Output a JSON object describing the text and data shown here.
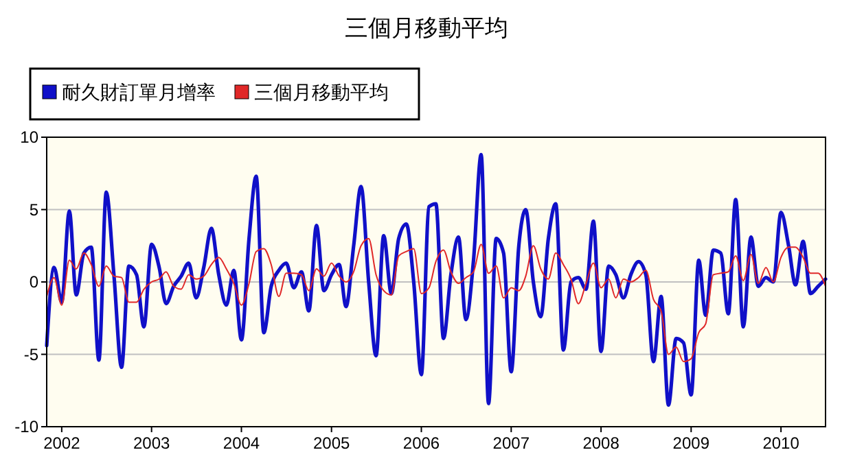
{
  "chart_data": {
    "type": "line",
    "title": "三個月移動平均",
    "x": [
      "2001-11",
      "2001-12",
      "2002-01",
      "2002-02",
      "2002-03",
      "2002-04",
      "2002-05",
      "2002-06",
      "2002-07",
      "2002-08",
      "2002-09",
      "2002-10",
      "2002-11",
      "2002-12",
      "2003-01",
      "2003-02",
      "2003-03",
      "2003-04",
      "2003-05",
      "2003-06",
      "2003-07",
      "2003-08",
      "2003-09",
      "2003-10",
      "2003-11",
      "2003-12",
      "2004-01",
      "2004-02",
      "2004-03",
      "2004-04",
      "2004-05",
      "2004-06",
      "2004-07",
      "2004-08",
      "2004-09",
      "2004-10",
      "2004-11",
      "2004-12",
      "2005-01",
      "2005-02",
      "2005-03",
      "2005-04",
      "2005-05",
      "2005-06",
      "2005-07",
      "2005-08",
      "2005-09",
      "2005-10",
      "2005-11",
      "2005-12",
      "2006-01",
      "2006-02",
      "2006-03",
      "2006-04",
      "2006-05",
      "2006-06",
      "2006-07",
      "2006-08",
      "2006-09",
      "2006-10",
      "2006-11",
      "2006-12",
      "2007-01",
      "2007-02",
      "2007-03",
      "2007-04",
      "2007-05",
      "2007-06",
      "2007-07",
      "2007-08",
      "2007-09",
      "2007-10",
      "2007-11",
      "2007-12",
      "2008-01",
      "2008-02",
      "2008-03",
      "2008-04",
      "2008-05",
      "2008-06",
      "2008-07",
      "2008-08",
      "2008-09",
      "2008-10",
      "2008-11",
      "2008-12",
      "2009-01",
      "2009-02",
      "2009-03",
      "2009-04",
      "2009-05",
      "2009-06",
      "2009-07",
      "2009-08",
      "2009-09",
      "2009-10",
      "2009-11",
      "2009-12",
      "2010-01",
      "2010-02",
      "2010-03",
      "2010-04",
      "2010-05",
      "2010-06",
      "2010-07"
    ],
    "series": [
      {
        "name": "耐久財訂單月增率",
        "color": "#1010c8",
        "values": [
          -4.4,
          1.0,
          -1.4,
          4.9,
          -0.9,
          2.0,
          2.4,
          -5.4,
          6.2,
          0.5,
          -5.9,
          1.1,
          0.5,
          -3.1,
          2.6,
          1.0,
          -1.5,
          -0.3,
          0.4,
          1.3,
          -1.1,
          1.0,
          3.7,
          0.5,
          -1.6,
          0.8,
          -4.0,
          3.0,
          7.3,
          -3.5,
          -0.3,
          0.8,
          1.3,
          -0.4,
          0.7,
          -2.0,
          3.9,
          -0.6,
          0.5,
          1.2,
          -1.7,
          2.5,
          6.6,
          0.0,
          -5.1,
          3.2,
          -0.8,
          3.0,
          4.0,
          0.0,
          -6.4,
          5.2,
          5.4,
          -3.9,
          0.5,
          3.1,
          -2.6,
          1.5,
          8.8,
          -8.4,
          3.0,
          2.0,
          -6.2,
          2.5,
          5.0,
          0.0,
          -2.4,
          3.0,
          5.4,
          -4.7,
          0.0,
          0.3,
          -0.5,
          4.2,
          -4.8,
          1.1,
          0.5,
          -1.1,
          0.5,
          1.4,
          0.5,
          -5.5,
          -1.0,
          -8.5,
          -3.9,
          -4.2,
          -7.8,
          1.5,
          -2.3,
          2.2,
          2.0,
          -2.2,
          5.7,
          -3.1,
          3.1,
          -0.3,
          0.3,
          0.0,
          4.8,
          2.5,
          -0.2,
          2.8,
          -0.8,
          -0.3,
          0.2
        ]
      },
      {
        "name": "三個月移動平均",
        "color": "#e02828",
        "values": [
          -1.0,
          0.3,
          -1.6,
          1.5,
          0.9,
          2.0,
          1.2,
          -0.3,
          1.1,
          0.4,
          0.3,
          -1.4,
          -1.4,
          -0.5,
          0.0,
          0.2,
          0.7,
          -0.3,
          -0.5,
          0.5,
          0.2,
          0.4,
          1.2,
          1.7,
          0.9,
          -0.1,
          -1.6,
          -0.1,
          2.1,
          2.3,
          1.2,
          -1.0,
          0.6,
          0.6,
          0.5,
          -0.6,
          0.9,
          0.4,
          1.3,
          0.4,
          0.0,
          0.7,
          2.5,
          3.0,
          0.5,
          -0.6,
          -0.9,
          1.8,
          2.1,
          2.3,
          -0.8,
          -0.4,
          1.4,
          2.2,
          0.7,
          -0.1,
          0.3,
          0.7,
          2.6,
          0.6,
          1.1,
          -1.1,
          -0.4,
          -0.6,
          0.4,
          2.5,
          0.9,
          0.2,
          2.0,
          1.2,
          0.2,
          -1.5,
          -0.1,
          1.3,
          -0.4,
          0.2,
          -1.1,
          0.2,
          0.0,
          0.3,
          0.8,
          -1.2,
          -2.0,
          -5.0,
          -4.5,
          -5.5,
          -5.3,
          -3.5,
          -2.9,
          0.5,
          0.6,
          0.7,
          1.8,
          0.1,
          1.9,
          -0.1,
          1.0,
          0.0,
          1.7,
          2.4,
          2.4,
          1.7,
          0.6,
          0.6,
          -0.3
        ]
      }
    ],
    "xlim": [
      "2001-11",
      "2010-07"
    ],
    "xticks": [
      "2002",
      "2003",
      "2004",
      "2005",
      "2006",
      "2007",
      "2008",
      "2009",
      "2010"
    ],
    "ylim": [
      -10,
      10
    ],
    "yticks": [
      -10,
      -5,
      0,
      5,
      10
    ],
    "grid": "y",
    "legend": "top left"
  }
}
